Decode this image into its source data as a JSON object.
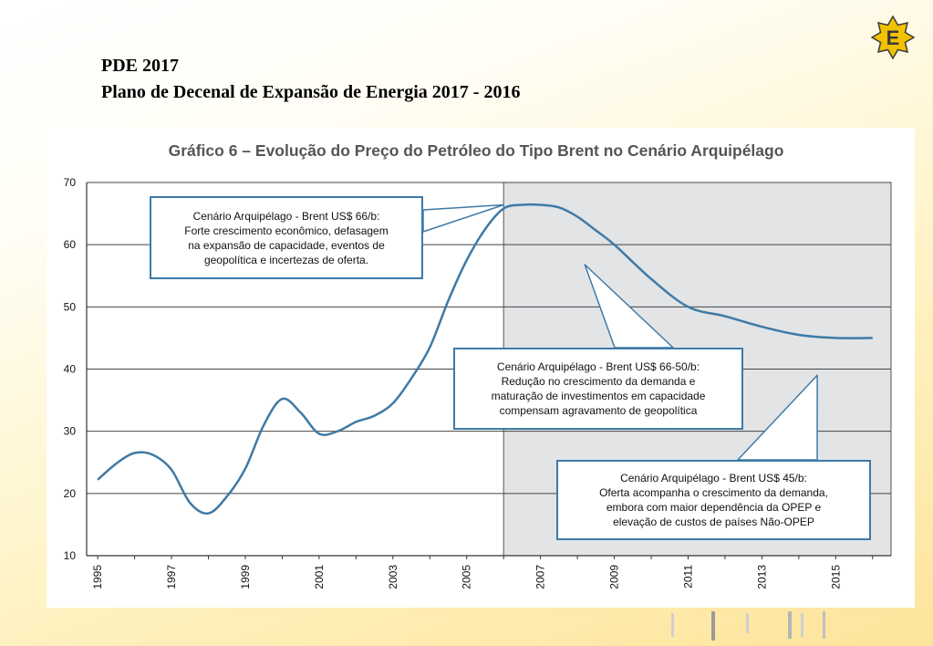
{
  "header": {
    "line1": "PDE 2017",
    "line2": "Plano de Decenal de Expansão de Energia 2017 - 2016"
  },
  "logo": {
    "letter": "E",
    "icon": "star-badge-icon",
    "color": "#f2c200",
    "border": "#3a3a3a"
  },
  "colors": {
    "line": "#3f7aa6",
    "callout_border": "#3f7aa6",
    "shade": "#e3e4e6",
    "grid": "#444444",
    "title": "#555555"
  },
  "chart_data": {
    "type": "line",
    "title": "Gráfico 6 – Evolução do Preço do Petróleo do Tipo Brent no Cenário Arquipélago",
    "xlabel": "",
    "ylabel": "",
    "xlim": [
      1994.7,
      2016.5
    ],
    "ylim": [
      10,
      70
    ],
    "yticks": [
      10,
      20,
      30,
      40,
      50,
      60,
      70
    ],
    "xticks": [
      "1995",
      "1997",
      "1999",
      "2001",
      "2003",
      "2005",
      "2007",
      "2009",
      "2011",
      "2013",
      "2015"
    ],
    "grid": "horizontal",
    "shaded_region": {
      "from": 2006,
      "to": 2016.5
    },
    "series": [
      {
        "x": [
          1995.0,
          1995.5,
          1996.0,
          1996.5,
          1997.0,
          1997.5,
          1998.0,
          1998.5,
          1999.0,
          1999.5,
          2000.0,
          2000.5,
          2001.0,
          2001.5,
          2002.0,
          2002.5,
          2003.0,
          2003.5,
          2004.0,
          2004.5,
          2005.0,
          2005.5,
          2006.0,
          2006.5,
          2007.0,
          2007.5,
          2008.0,
          2008.5,
          2009.0,
          2010.0,
          2011.0,
          2012.0,
          2013.0,
          2014.0,
          2015.0,
          2016.0
        ],
        "values": [
          22.2,
          24.8,
          26.5,
          26.2,
          23.8,
          18.5,
          16.8,
          19.5,
          24.0,
          31.0,
          35.2,
          33.0,
          29.6,
          30.0,
          31.5,
          32.5,
          34.5,
          38.5,
          43.5,
          51.0,
          57.5,
          62.5,
          65.8,
          66.4,
          66.4,
          66.0,
          64.5,
          62.3,
          60.0,
          54.5,
          50.0,
          48.5,
          46.8,
          45.5,
          45.0,
          45.0
        ]
      }
    ],
    "annotations": [
      {
        "lines": [
          "Cenário Arquipélago - Brent US$ 66/b:",
          "Forte crescimento econômico, defasagem",
          "na expansão de capacidade, eventos de",
          "geopolítica e incertezas de oferta."
        ]
      },
      {
        "lines": [
          "Cenário Arquipélago - Brent US$ 66-50/b:",
          "Redução no crescimento da demanda e",
          "maturação de investimentos em capacidade",
          "compensam agravamento de  geopolítica"
        ]
      },
      {
        "lines": [
          "Cenário Arquipélago - Brent US$ 45/b:",
          "Oferta acompanha o crescimento da demanda,",
          "embora com maior dependência da OPEP e",
          "elevação de custos de países Não-OPEP"
        ]
      }
    ]
  }
}
